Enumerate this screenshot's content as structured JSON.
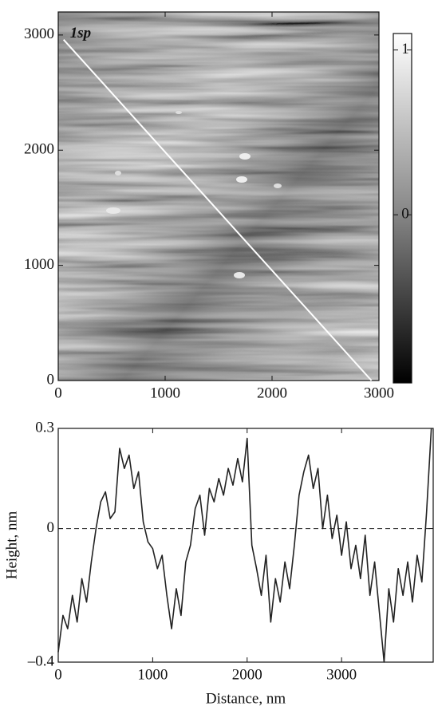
{
  "chart_data": [
    {
      "type": "image",
      "xlim": [
        0,
        3000
      ],
      "ylim": [
        0,
        3200
      ],
      "xticks": [
        0,
        1000,
        2000,
        3000
      ],
      "yticks": [
        0,
        1000,
        2000,
        3000
      ],
      "annotation": "1sp",
      "profile_line": {
        "x": [
          50,
          2930
        ],
        "y": [
          2960,
          0
        ],
        "color": "#ffffff"
      },
      "colorbar": {
        "lim": [
          -1.02,
          1.1
        ],
        "ticks": [
          0,
          1
        ]
      }
    },
    {
      "type": "line",
      "xlabel": "Distance, nm",
      "ylabel": "Height, nm",
      "xlim": [
        0,
        3970
      ],
      "ylim": [
        -0.4,
        0.3
      ],
      "xticks": [
        0,
        1000,
        2000,
        3000
      ],
      "yticks": [
        {
          "value": -0.4,
          "label": "–0.4"
        },
        0,
        0.3
      ],
      "zero_line": true,
      "x": [
        0,
        50,
        100,
        150,
        200,
        250,
        300,
        350,
        400,
        450,
        500,
        550,
        600,
        650,
        700,
        750,
        800,
        850,
        900,
        950,
        1000,
        1050,
        1100,
        1150,
        1200,
        1250,
        1300,
        1350,
        1400,
        1450,
        1500,
        1550,
        1600,
        1650,
        1700,
        1750,
        1800,
        1850,
        1900,
        1950,
        2000,
        2050,
        2100,
        2150,
        2200,
        2250,
        2300,
        2350,
        2400,
        2450,
        2500,
        2550,
        2600,
        2650,
        2700,
        2750,
        2800,
        2850,
        2900,
        2950,
        3000,
        3050,
        3100,
        3150,
        3200,
        3250,
        3300,
        3350,
        3400,
        3450,
        3500,
        3550,
        3600,
        3650,
        3700,
        3750,
        3800,
        3850,
        3900,
        3950
      ],
      "series": [
        {
          "color": "#222222",
          "values": [
            -0.37,
            -0.26,
            -0.3,
            -0.2,
            -0.28,
            -0.15,
            -0.22,
            -0.1,
            0.0,
            0.08,
            0.11,
            0.03,
            0.05,
            0.24,
            0.18,
            0.22,
            0.12,
            0.17,
            0.02,
            -0.04,
            -0.06,
            -0.12,
            -0.08,
            -0.2,
            -0.3,
            -0.18,
            -0.26,
            -0.1,
            -0.05,
            0.06,
            0.1,
            -0.02,
            0.12,
            0.08,
            0.15,
            0.1,
            0.18,
            0.13,
            0.21,
            0.14,
            0.27,
            -0.05,
            -0.12,
            -0.2,
            -0.08,
            -0.28,
            -0.15,
            -0.22,
            -0.1,
            -0.18,
            -0.05,
            0.1,
            0.17,
            0.22,
            0.12,
            0.18,
            0.0,
            0.1,
            -0.03,
            0.04,
            -0.08,
            0.02,
            -0.12,
            -0.05,
            -0.15,
            -0.02,
            -0.2,
            -0.1,
            -0.25,
            -0.4,
            -0.18,
            -0.28,
            -0.12,
            -0.2,
            -0.1,
            -0.22,
            -0.08,
            -0.16,
            0.05,
            0.3
          ]
        }
      ]
    }
  ]
}
